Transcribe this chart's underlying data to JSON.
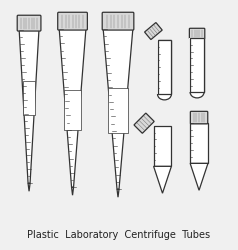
{
  "title": "Plastic  Laboratory  Centrifuge  Tubes",
  "title_fontsize": 7.0,
  "bg_color": "#f0f0f0",
  "line_color": "#333333",
  "fill_color": "#ffffff",
  "cap_fill": "#d8d8d8",
  "lw": 0.9
}
